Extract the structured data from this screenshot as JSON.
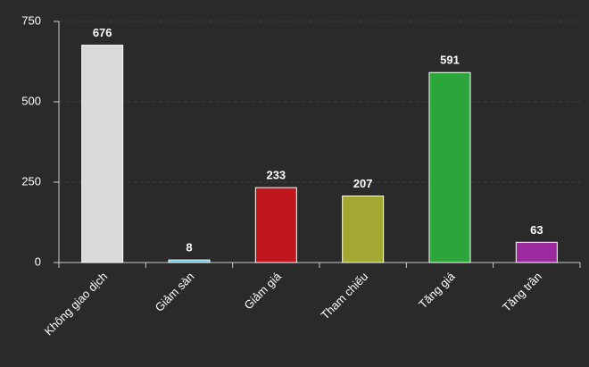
{
  "chart_data": {
    "type": "bar",
    "categories": [
      "Không giao dịch",
      "Giảm sàn",
      "Giảm giá",
      "Tham chiếu",
      "Tăng giá",
      "Tăng trần"
    ],
    "values": [
      676,
      8,
      233,
      207,
      591,
      63
    ],
    "colors": [
      "#d9d9d9",
      "#5bc0de",
      "#c0171f",
      "#a3a832",
      "#2ca53b",
      "#9b2a9e"
    ],
    "ylim": [
      0,
      750
    ],
    "yticks": [
      0,
      250,
      500,
      750
    ],
    "grid": true
  }
}
